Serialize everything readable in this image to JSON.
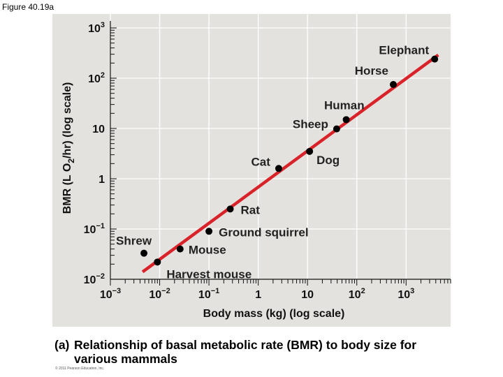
{
  "figure_label": "Figure 40.19a",
  "caption": {
    "tag": "(a)",
    "line1": "Relationship of basal metabolic rate (BMR) to body size for",
    "line2": "various mammals"
  },
  "copyright": "© 2011 Pearson Education, Inc.",
  "colors": {
    "panel_bg": "#e4e2df",
    "fit_line": "#d9232a",
    "points": "#000000"
  },
  "chart_data": {
    "type": "scatter",
    "xlabel": "Body mass (kg) (log scale)",
    "ylabel": "BMR (L O2/hr) (log scale)",
    "xscale": "log",
    "yscale": "log",
    "xlim": [
      0.001,
      8000
    ],
    "ylim": [
      0.01,
      1000
    ],
    "xticks": [
      {
        "base": "10",
        "exp": "−3",
        "value": 0.001
      },
      {
        "base": "10",
        "exp": "−2",
        "value": 0.01
      },
      {
        "base": "10",
        "exp": "−1",
        "value": 0.1
      },
      {
        "base": "1",
        "exp": "",
        "value": 1
      },
      {
        "base": "10",
        "exp": "",
        "value": 10
      },
      {
        "base": "10",
        "exp": "2",
        "value": 100
      },
      {
        "base": "10",
        "exp": "3",
        "value": 1000
      }
    ],
    "yticks": [
      {
        "base": "10",
        "exp": "−2",
        "value": 0.01
      },
      {
        "base": "10",
        "exp": "−1",
        "value": 0.1
      },
      {
        "base": "1",
        "exp": "",
        "value": 1
      },
      {
        "base": "10",
        "exp": "",
        "value": 10
      },
      {
        "base": "10",
        "exp": "2",
        "value": 100
      },
      {
        "base": "10",
        "exp": "3",
        "value": 1000
      }
    ],
    "points": [
      {
        "label": "Shrew",
        "x": 0.0048,
        "y": 0.033
      },
      {
        "label": "Harvest mouse",
        "x": 0.009,
        "y": 0.022
      },
      {
        "label": "Mouse",
        "x": 0.026,
        "y": 0.04
      },
      {
        "label": "Ground squirrel",
        "x": 0.1,
        "y": 0.09
      },
      {
        "label": "Rat",
        "x": 0.27,
        "y": 0.25
      },
      {
        "label": "Cat",
        "x": 2.6,
        "y": 1.6
      },
      {
        "label": "Dog",
        "x": 11,
        "y": 3.5
      },
      {
        "label": "Sheep",
        "x": 39,
        "y": 9.8
      },
      {
        "label": "Human",
        "x": 61,
        "y": 15
      },
      {
        "label": "Horse",
        "x": 550,
        "y": 75
      },
      {
        "label": "Elephant",
        "x": 3800,
        "y": 240
      }
    ],
    "fit_line": {
      "from": [
        0.0045,
        0.014
      ],
      "to": [
        4500,
        290
      ]
    }
  }
}
